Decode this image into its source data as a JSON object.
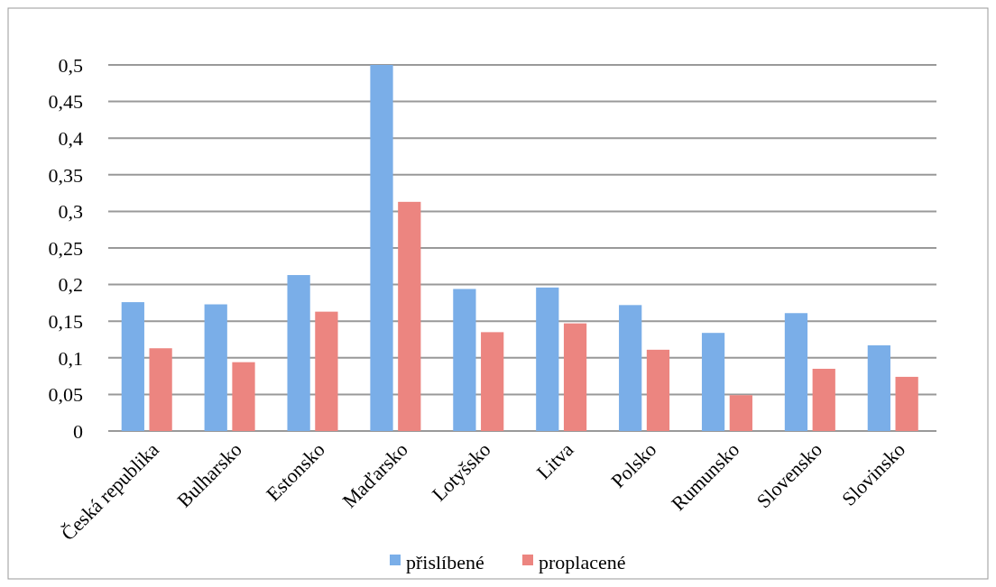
{
  "chart_data": {
    "type": "bar",
    "categories": [
      "Česká republika",
      "Bulharsko",
      "Estonsko",
      "Maďarsko",
      "Lotyšsko",
      "Litva",
      "Polsko",
      "Rumunsko",
      "Slovensko",
      "Slovinsko"
    ],
    "series": [
      {
        "name": "přislíbené",
        "color": "#7aaee8",
        "values": [
          0.176,
          0.173,
          0.213,
          0.5,
          0.194,
          0.196,
          0.172,
          0.134,
          0.161,
          0.117
        ]
      },
      {
        "name": "proplacené",
        "color": "#ec8580",
        "values": [
          0.113,
          0.094,
          0.163,
          0.313,
          0.135,
          0.147,
          0.111,
          0.049,
          0.085,
          0.074
        ]
      }
    ],
    "ylim": [
      0,
      0.5
    ],
    "yticks": [
      0,
      {
        "value": 0.05,
        "label": "0,05"
      },
      {
        "value": 0.1,
        "label": "0,1"
      },
      {
        "value": 0.15,
        "label": "0,15"
      },
      {
        "value": 0.2,
        "label": "0,2"
      },
      {
        "value": 0.25,
        "label": "0,25"
      },
      {
        "value": 0.3,
        "label": "0,3"
      },
      {
        "value": 0.35,
        "label": "0,35"
      },
      {
        "value": 0.4,
        "label": "0,4"
      },
      {
        "value": 0.45,
        "label": "0,45"
      },
      {
        "value": 0.5,
        "label": "0,5"
      }
    ],
    "grid": "y",
    "legend": "bottom"
  }
}
